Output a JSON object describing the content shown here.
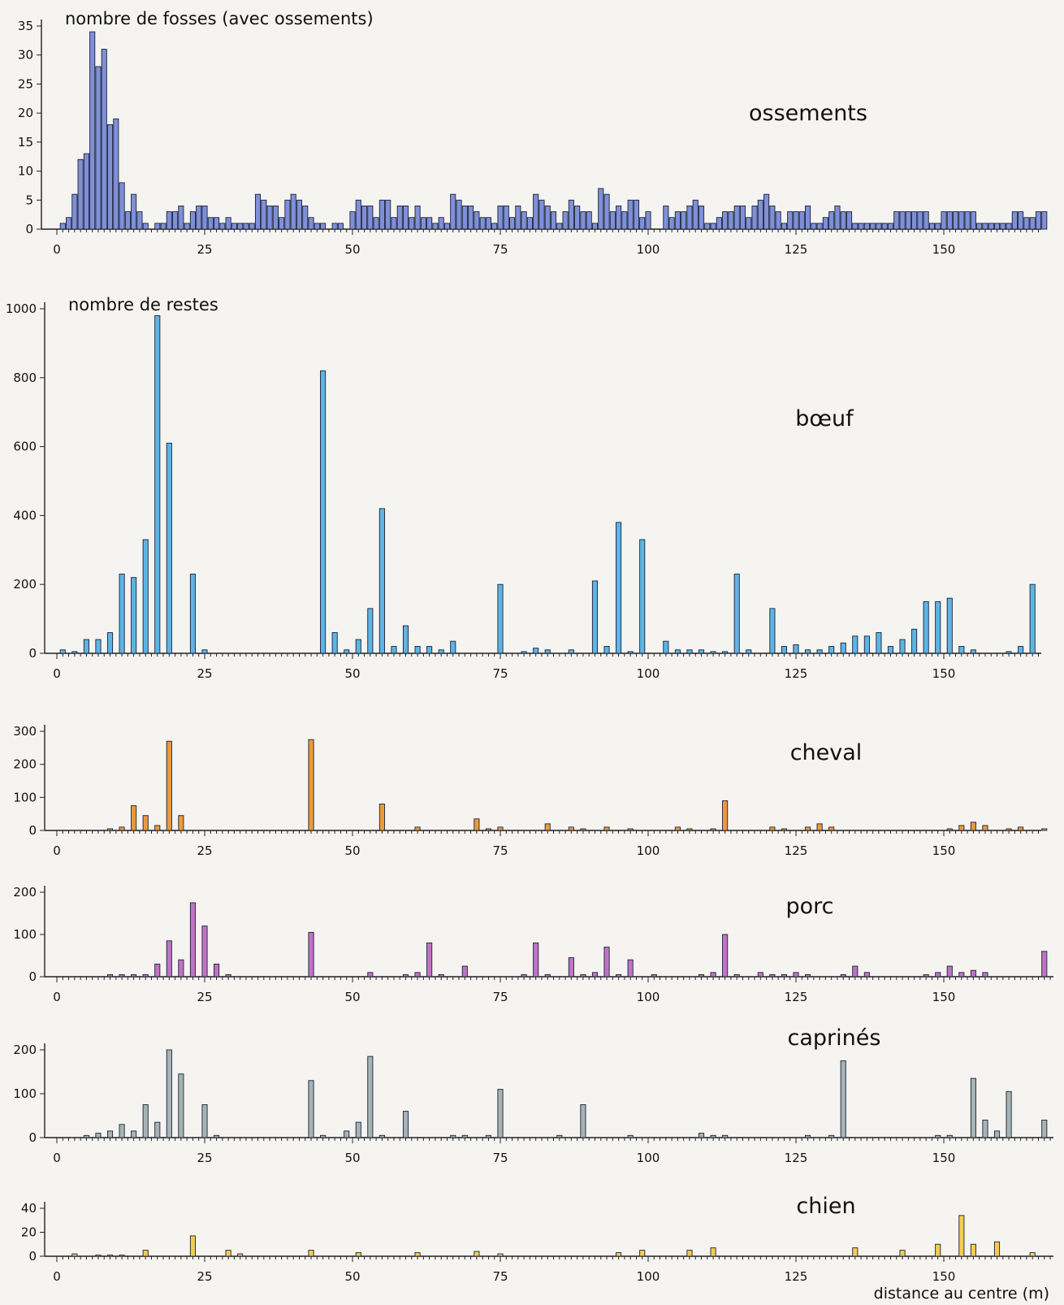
{
  "figure": {
    "xlabel": "distance au centre (m)"
  },
  "chart_data": [
    {
      "type": "bar",
      "title": "nombre de fosses (avec ossements)",
      "series_name": "ossements",
      "color": "#7f90d8",
      "x": [
        1,
        2,
        3,
        4,
        5,
        6,
        7,
        8,
        9,
        10,
        11,
        12,
        13,
        14,
        15,
        16,
        17,
        18,
        19,
        20,
        21,
        22,
        23,
        24,
        25,
        26,
        27,
        28,
        29,
        30,
        31,
        32,
        33,
        34,
        35,
        36,
        37,
        38,
        39,
        40,
        41,
        42,
        43,
        44,
        45,
        46,
        47,
        48,
        49,
        50,
        51,
        52,
        53,
        54,
        55,
        56,
        57,
        58,
        59,
        60,
        61,
        62,
        63,
        64,
        65,
        66,
        67,
        68,
        69,
        70,
        71,
        72,
        73,
        74,
        75,
        76,
        77,
        78,
        79,
        80,
        81,
        82,
        83,
        84,
        85,
        86,
        87,
        88,
        89,
        90,
        91,
        92,
        93,
        94,
        95,
        96,
        97,
        98,
        99,
        100,
        101,
        102,
        103,
        104,
        105,
        106,
        107,
        108,
        109,
        110,
        111,
        112,
        113,
        114,
        115,
        116,
        117,
        118,
        119,
        120,
        121,
        122,
        123,
        124,
        125,
        126,
        127,
        128,
        129,
        130,
        131,
        132,
        133,
        134,
        135,
        136,
        137,
        138,
        139,
        140,
        141,
        142,
        143,
        144,
        145,
        146,
        147,
        148,
        149,
        150,
        151,
        152,
        153,
        154,
        155,
        156,
        157,
        158,
        159,
        160,
        161,
        162,
        163,
        164,
        165,
        166,
        167
      ],
      "values": [
        1,
        2,
        6,
        12,
        13,
        34,
        28,
        31,
        18,
        19,
        8,
        3,
        6,
        3,
        1,
        0,
        1,
        1,
        3,
        3,
        4,
        1,
        3,
        4,
        4,
        2,
        2,
        1,
        2,
        1,
        1,
        1,
        1,
        6,
        5,
        4,
        4,
        2,
        5,
        6,
        5,
        4,
        2,
        1,
        1,
        0,
        1,
        1,
        0,
        3,
        5,
        4,
        4,
        2,
        5,
        5,
        2,
        4,
        4,
        2,
        4,
        2,
        2,
        1,
        2,
        1,
        6,
        5,
        4,
        4,
        3,
        2,
        2,
        1,
        4,
        4,
        2,
        4,
        3,
        2,
        6,
        5,
        4,
        3,
        1,
        3,
        5,
        4,
        3,
        3,
        1,
        7,
        6,
        3,
        4,
        3,
        5,
        5,
        2,
        3,
        0,
        0,
        4,
        2,
        3,
        3,
        4,
        5,
        4,
        1,
        1,
        2,
        3,
        3,
        4,
        4,
        2,
        4,
        5,
        6,
        4,
        3,
        1,
        3,
        3,
        3,
        4,
        1,
        1,
        2,
        3,
        4,
        3,
        3,
        1,
        1,
        1,
        1,
        1,
        1,
        1,
        3,
        3,
        3,
        3,
        3,
        3,
        1,
        1,
        3,
        3,
        3,
        3,
        3,
        3,
        1,
        1,
        1,
        1,
        1,
        1,
        3,
        3,
        2,
        2,
        3,
        3
      ],
      "ylim": [
        0,
        35
      ],
      "yticks": [
        0,
        5,
        10,
        15,
        20,
        25,
        30,
        35
      ],
      "xlim": [
        0,
        168
      ],
      "xticks": [
        0,
        25,
        50,
        75,
        100,
        125,
        150
      ]
    },
    {
      "type": "bar",
      "title": "nombre de restes",
      "series_name": "bœuf",
      "color": "#5eb4e5",
      "x": [
        1,
        3,
        5,
        7,
        9,
        11,
        13,
        15,
        17,
        19,
        21,
        23,
        25,
        27,
        29,
        31,
        33,
        35,
        37,
        39,
        41,
        43,
        45,
        47,
        49,
        51,
        53,
        55,
        57,
        59,
        61,
        63,
        65,
        67,
        69,
        71,
        73,
        75,
        77,
        79,
        81,
        83,
        85,
        87,
        89,
        91,
        93,
        95,
        97,
        99,
        101,
        103,
        105,
        107,
        109,
        111,
        113,
        115,
        117,
        119,
        121,
        123,
        125,
        127,
        129,
        131,
        133,
        135,
        137,
        139,
        141,
        143,
        145,
        147,
        149,
        151,
        153,
        155,
        157,
        159,
        161,
        163,
        165,
        167
      ],
      "values": [
        10,
        5,
        40,
        40,
        60,
        230,
        220,
        330,
        980,
        610,
        0,
        230,
        10,
        0,
        0,
        0,
        0,
        0,
        0,
        0,
        0,
        0,
        820,
        60,
        10,
        40,
        130,
        420,
        20,
        80,
        20,
        20,
        10,
        35,
        0,
        0,
        0,
        200,
        0,
        5,
        15,
        10,
        0,
        10,
        0,
        210,
        20,
        380,
        5,
        330,
        0,
        35,
        10,
        10,
        10,
        5,
        5,
        230,
        10,
        0,
        130,
        20,
        25,
        10,
        10,
        20,
        30,
        50,
        50,
        60,
        20,
        40,
        70,
        150,
        150,
        160,
        20,
        10,
        0,
        0,
        5,
        20,
        200,
        0
      ],
      "ylim": [
        0,
        1000
      ],
      "yticks": [
        0,
        200,
        400,
        600,
        800,
        1000
      ],
      "xlim": [
        0,
        168
      ],
      "xticks": [
        0,
        25,
        50,
        75,
        100,
        125,
        150
      ]
    },
    {
      "type": "bar",
      "series_name": "cheval",
      "color": "#e99b3c",
      "x": [
        1,
        3,
        5,
        7,
        9,
        11,
        13,
        15,
        17,
        19,
        21,
        23,
        25,
        27,
        29,
        31,
        33,
        35,
        37,
        39,
        41,
        43,
        45,
        47,
        49,
        51,
        53,
        55,
        57,
        59,
        61,
        63,
        65,
        67,
        69,
        71,
        73,
        75,
        77,
        79,
        81,
        83,
        85,
        87,
        89,
        91,
        93,
        95,
        97,
        99,
        101,
        103,
        105,
        107,
        109,
        111,
        113,
        115,
        117,
        119,
        121,
        123,
        125,
        127,
        129,
        131,
        133,
        135,
        137,
        139,
        141,
        143,
        145,
        147,
        149,
        151,
        153,
        155,
        157,
        159,
        161,
        163,
        165,
        167
      ],
      "values": [
        0,
        0,
        0,
        0,
        5,
        10,
        75,
        45,
        15,
        270,
        45,
        0,
        0,
        0,
        0,
        0,
        0,
        0,
        0,
        0,
        0,
        275,
        0,
        0,
        0,
        0,
        0,
        80,
        0,
        0,
        10,
        0,
        0,
        0,
        0,
        35,
        5,
        10,
        0,
        0,
        0,
        20,
        0,
        10,
        5,
        0,
        10,
        0,
        5,
        0,
        0,
        0,
        10,
        5,
        0,
        5,
        90,
        0,
        0,
        0,
        10,
        5,
        0,
        10,
        20,
        10,
        0,
        0,
        0,
        0,
        0,
        0,
        0,
        0,
        0,
        5,
        15,
        25,
        15,
        0,
        5,
        10,
        0,
        5
      ],
      "ylim": [
        0,
        300
      ],
      "yticks": [
        0,
        100,
        200,
        300
      ],
      "xlim": [
        0,
        168
      ],
      "xticks": [
        0,
        25,
        50,
        75,
        100,
        125,
        150
      ]
    },
    {
      "type": "bar",
      "series_name": "porc",
      "color": "#bf74c6",
      "x": [
        1,
        3,
        5,
        7,
        9,
        11,
        13,
        15,
        17,
        19,
        21,
        23,
        25,
        27,
        29,
        31,
        33,
        35,
        37,
        39,
        41,
        43,
        45,
        47,
        49,
        51,
        53,
        55,
        57,
        59,
        61,
        63,
        65,
        67,
        69,
        71,
        73,
        75,
        77,
        79,
        81,
        83,
        85,
        87,
        89,
        91,
        93,
        95,
        97,
        99,
        101,
        103,
        105,
        107,
        109,
        111,
        113,
        115,
        117,
        119,
        121,
        123,
        125,
        127,
        129,
        131,
        133,
        135,
        137,
        139,
        141,
        143,
        145,
        147,
        149,
        151,
        153,
        155,
        157,
        159,
        161,
        163,
        165,
        167
      ],
      "values": [
        0,
        0,
        0,
        0,
        5,
        5,
        5,
        5,
        30,
        85,
        40,
        175,
        120,
        30,
        5,
        0,
        0,
        0,
        0,
        0,
        0,
        105,
        0,
        0,
        0,
        0,
        10,
        0,
        0,
        5,
        10,
        80,
        5,
        0,
        25,
        0,
        0,
        0,
        0,
        5,
        80,
        5,
        0,
        45,
        5,
        10,
        70,
        5,
        40,
        0,
        5,
        0,
        0,
        0,
        5,
        10,
        100,
        5,
        0,
        10,
        5,
        5,
        10,
        5,
        0,
        0,
        5,
        25,
        10,
        0,
        0,
        0,
        0,
        5,
        10,
        25,
        10,
        15,
        10,
        0,
        0,
        0,
        0,
        60
      ],
      "ylim": [
        0,
        200
      ],
      "yticks": [
        0,
        100,
        200
      ],
      "xlim": [
        0,
        168
      ],
      "xticks": [
        0,
        25,
        50,
        75,
        100,
        125,
        150
      ]
    },
    {
      "type": "bar",
      "series_name": "caprinés",
      "color": "#a6b4b6",
      "x": [
        1,
        3,
        5,
        7,
        9,
        11,
        13,
        15,
        17,
        19,
        21,
        23,
        25,
        27,
        29,
        31,
        33,
        35,
        37,
        39,
        41,
        43,
        45,
        47,
        49,
        51,
        53,
        55,
        57,
        59,
        61,
        63,
        65,
        67,
        69,
        71,
        73,
        75,
        77,
        79,
        81,
        83,
        85,
        87,
        89,
        91,
        93,
        95,
        97,
        99,
        101,
        103,
        105,
        107,
        109,
        111,
        113,
        115,
        117,
        119,
        121,
        123,
        125,
        127,
        129,
        131,
        133,
        135,
        137,
        139,
        141,
        143,
        145,
        147,
        149,
        151,
        153,
        155,
        157,
        159,
        161,
        163,
        165,
        167
      ],
      "values": [
        0,
        0,
        5,
        10,
        15,
        30,
        15,
        75,
        35,
        200,
        145,
        0,
        75,
        5,
        0,
        0,
        0,
        0,
        0,
        0,
        0,
        130,
        5,
        0,
        15,
        35,
        185,
        5,
        0,
        60,
        0,
        0,
        0,
        5,
        5,
        0,
        5,
        110,
        0,
        0,
        0,
        0,
        5,
        0,
        75,
        0,
        0,
        0,
        5,
        0,
        0,
        0,
        0,
        0,
        10,
        5,
        5,
        0,
        0,
        0,
        0,
        0,
        0,
        5,
        0,
        5,
        175,
        0,
        0,
        0,
        0,
        0,
        0,
        0,
        5,
        5,
        0,
        135,
        40,
        15,
        105,
        0,
        0,
        40
      ],
      "ylim": [
        0,
        200
      ],
      "yticks": [
        0,
        100,
        200
      ],
      "xlim": [
        0,
        168
      ],
      "xticks": [
        0,
        25,
        50,
        75,
        100,
        125,
        150
      ]
    },
    {
      "type": "bar",
      "series_name": "chien",
      "color": "#f3cc54",
      "x": [
        3,
        7,
        9,
        11,
        15,
        23,
        29,
        31,
        43,
        51,
        61,
        71,
        75,
        95,
        99,
        107,
        111,
        135,
        143,
        149,
        153,
        155,
        159,
        165
      ],
      "values": [
        2,
        1,
        1,
        1,
        5,
        17,
        5,
        2,
        5,
        3,
        3,
        4,
        2,
        3,
        5,
        5,
        7,
        7,
        5,
        10,
        34,
        10,
        12,
        3
      ],
      "ylim": [
        0,
        40
      ],
      "yticks": [
        0,
        20,
        40
      ],
      "xlim": [
        0,
        168
      ],
      "xticks": [
        0,
        25,
        50,
        75,
        100,
        125,
        150
      ]
    }
  ]
}
